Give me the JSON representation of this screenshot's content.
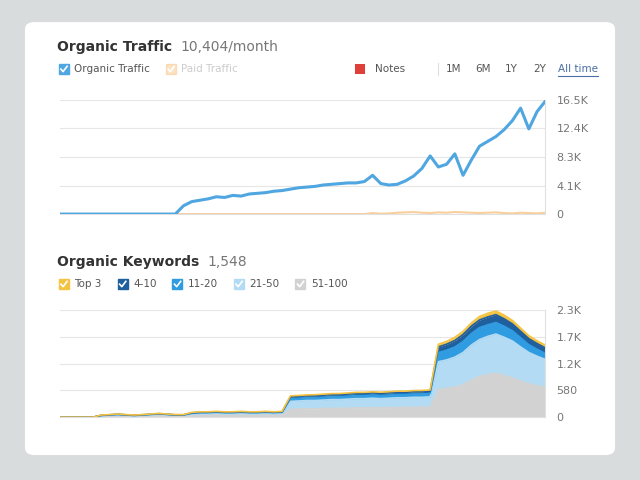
{
  "chart_data": [
    {
      "type": "line",
      "title": "Organic Traffic",
      "subtitle": "10,404/month",
      "annotations": [
        "Notes",
        "1M",
        "6M",
        "1Y",
        "2Y",
        "All time"
      ],
      "categories": [
        null,
        null,
        null,
        null,
        null,
        null,
        null,
        null,
        null,
        null,
        null,
        null,
        null,
        null,
        null,
        null,
        null,
        null,
        null,
        null,
        null,
        null,
        null,
        null,
        null,
        null,
        null,
        null,
        null,
        null,
        null,
        null,
        null,
        null,
        null,
        null,
        null,
        null,
        null,
        null,
        null,
        null,
        null,
        null,
        null,
        null,
        null,
        null,
        null,
        null,
        null,
        null,
        null,
        null,
        null,
        null,
        null,
        null,
        null,
        null
      ],
      "series": [
        {
          "name": "Organic Traffic",
          "color": "#4fa6e0",
          "values": [
            0,
            0,
            0,
            0,
            0,
            0,
            0,
            0,
            0,
            0,
            0,
            0,
            0,
            0,
            0,
            1200,
            1800,
            2000,
            2200,
            2500,
            2400,
            2700,
            2600,
            2900,
            3000,
            3100,
            3300,
            3400,
            3600,
            3800,
            3900,
            4000,
            4200,
            4300,
            4400,
            4500,
            4500,
            4700,
            5600,
            4400,
            4200,
            4300,
            4800,
            5500,
            6600,
            8400,
            6800,
            7200,
            8700,
            5600,
            7800,
            9800,
            10500,
            11200,
            12200,
            13500,
            15300,
            12300,
            14800,
            16300
          ]
        },
        {
          "name": "Paid Traffic",
          "color": "#f5b15c",
          "values": [
            0,
            0,
            0,
            0,
            0,
            0,
            0,
            0,
            0,
            0,
            0,
            0,
            0,
            0,
            0,
            0,
            0,
            0,
            0,
            0,
            0,
            0,
            0,
            0,
            0,
            0,
            0,
            0,
            0,
            0,
            0,
            0,
            0,
            0,
            0,
            0,
            0,
            0,
            150,
            50,
            100,
            200,
            250,
            300,
            200,
            150,
            250,
            200,
            300,
            250,
            200,
            150,
            200,
            250,
            150,
            100,
            200,
            150,
            100,
            200
          ]
        }
      ],
      "ylim": [
        0,
        16500
      ],
      "yticks": [
        0,
        {
          "value": 4125,
          "label": "4.1K"
        },
        {
          "value": 8250,
          "label": "8.3K"
        },
        {
          "value": 12375,
          "label": "12.4K"
        },
        {
          "value": 16500,
          "label": "16.5K"
        }
      ],
      "grid": true,
      "tick_labels": "y"
    },
    {
      "type": "area",
      "stacked": true,
      "title": "Organic Keywords",
      "subtitle": "1,548",
      "categories": [
        null,
        null,
        null,
        null,
        null,
        null,
        null,
        null,
        null,
        null,
        null,
        null,
        null,
        null,
        null,
        null,
        null,
        null,
        null,
        null,
        null,
        null,
        null,
        null,
        null,
        null,
        null,
        null,
        null,
        null,
        null,
        null,
        null,
        null,
        null,
        null,
        null,
        null,
        null,
        null,
        null,
        null,
        null,
        null,
        null,
        null,
        null,
        null,
        null,
        null,
        null,
        null,
        null,
        null,
        null,
        null,
        null,
        null,
        null,
        null
      ],
      "series": [
        {
          "name": "51-100",
          "color": "#d2d2d2",
          "values": [
            0,
            0,
            0,
            0,
            0,
            15,
            20,
            25,
            20,
            15,
            20,
            25,
            30,
            25,
            20,
            20,
            35,
            40,
            40,
            45,
            40,
            40,
            45,
            40,
            40,
            45,
            40,
            45,
            170,
            175,
            180,
            180,
            185,
            190,
            190,
            195,
            200,
            200,
            205,
            200,
            205,
            210,
            210,
            215,
            215,
            220,
            600,
            620,
            650,
            700,
            800,
            880,
            920,
            950,
            900,
            850,
            780,
            720,
            680,
            650
          ]
        },
        {
          "name": "21-50",
          "color": "#b3dcf4",
          "values": [
            0,
            0,
            0,
            0,
            0,
            15,
            20,
            25,
            20,
            15,
            20,
            25,
            30,
            25,
            20,
            20,
            35,
            40,
            40,
            45,
            40,
            40,
            45,
            40,
            40,
            45,
            40,
            45,
            170,
            175,
            180,
            180,
            185,
            190,
            190,
            195,
            200,
            200,
            205,
            200,
            205,
            210,
            210,
            215,
            215,
            220,
            600,
            620,
            650,
            700,
            760,
            800,
            830,
            850,
            830,
            800,
            740,
            680,
            640,
            600
          ]
        },
        {
          "name": "11-20",
          "color": "#2f9be0",
          "values": [
            0,
            0,
            0,
            0,
            0,
            5,
            5,
            8,
            5,
            5,
            5,
            8,
            10,
            8,
            5,
            5,
            12,
            15,
            15,
            15,
            15,
            15,
            15,
            15,
            15,
            15,
            15,
            15,
            60,
            60,
            62,
            62,
            64,
            65,
            65,
            66,
            68,
            68,
            70,
            70,
            70,
            72,
            72,
            72,
            74,
            75,
            200,
            210,
            220,
            240,
            250,
            260,
            250,
            250,
            240,
            220,
            200,
            170,
            150,
            130
          ]
        },
        {
          "name": "4-10",
          "color": "#1f5f9e",
          "values": [
            0,
            0,
            0,
            0,
            0,
            5,
            5,
            5,
            5,
            5,
            5,
            5,
            5,
            5,
            5,
            5,
            10,
            10,
            10,
            10,
            10,
            10,
            10,
            10,
            10,
            10,
            10,
            10,
            40,
            40,
            40,
            42,
            42,
            42,
            44,
            44,
            44,
            45,
            45,
            45,
            46,
            46,
            46,
            48,
            48,
            48,
            120,
            130,
            140,
            150,
            160,
            165,
            170,
            170,
            160,
            150,
            140,
            130,
            125,
            120
          ]
        },
        {
          "name": "Top 3",
          "color": "#f5c342",
          "values": [
            0,
            0,
            0,
            0,
            0,
            5,
            5,
            5,
            5,
            5,
            5,
            5,
            5,
            5,
            5,
            5,
            10,
            10,
            10,
            10,
            10,
            10,
            10,
            10,
            10,
            10,
            10,
            10,
            20,
            20,
            20,
            22,
            22,
            22,
            22,
            24,
            24,
            24,
            24,
            25,
            25,
            25,
            25,
            26,
            26,
            26,
            60,
            60,
            70,
            70,
            70,
            75,
            80,
            80,
            80,
            75,
            70,
            65,
            60,
            60
          ]
        }
      ],
      "ylim": [
        0,
        2320
      ],
      "yticks": [
        0,
        580,
        {
          "value": 1160,
          "label": "1.2K"
        },
        {
          "value": 1740,
          "label": "1.7K"
        },
        {
          "value": 2320,
          "label": "2.3K"
        }
      ],
      "grid": true,
      "tick_labels": "y"
    }
  ]
}
